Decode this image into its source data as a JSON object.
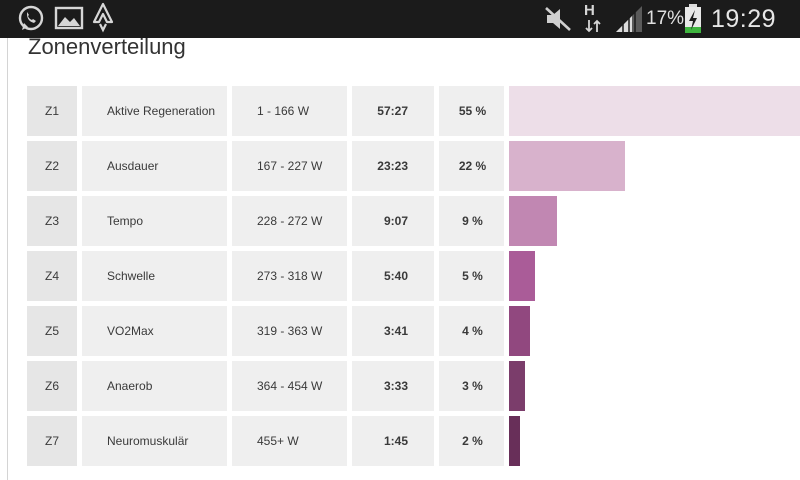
{
  "status_bar": {
    "icons_left": [
      "whatsapp-icon",
      "gallery-icon",
      "strava-icon"
    ],
    "icons_right": [
      "mute-icon",
      "hspa-data-icon",
      "signal-icon",
      "battery-charging-icon"
    ],
    "network_label": "H",
    "battery_percent": "17%",
    "time": "19:29"
  },
  "page": {
    "title": "Zonenverteilung"
  },
  "zones": [
    {
      "zone": "Z1",
      "name": "Aktive Regeneration",
      "range": "1 - 166 W",
      "time": "57:27",
      "percent_label": "55 %",
      "percent": 55,
      "color": "#eddee8"
    },
    {
      "zone": "Z2",
      "name": "Ausdauer",
      "range": "167 - 227 W",
      "time": "23:23",
      "percent_label": "22 %",
      "percent": 22,
      "color": "#d8b2cc"
    },
    {
      "zone": "Z3",
      "name": "Tempo",
      "range": "228 - 272 W",
      "time": "9:07",
      "percent_label": "9 %",
      "percent": 9,
      "color": "#c187b2"
    },
    {
      "zone": "Z4",
      "name": "Schwelle",
      "range": "273 - 318 W",
      "time": "5:40",
      "percent_label": "5 %",
      "percent": 5,
      "color": "#aa5c98"
    },
    {
      "zone": "Z5",
      "name": "VO2Max",
      "range": "319 - 363 W",
      "time": "3:41",
      "percent_label": "4 %",
      "percent": 4,
      "color": "#91487f"
    },
    {
      "zone": "Z6",
      "name": "Anaerob",
      "range": "364 - 454 W",
      "time": "3:33",
      "percent_label": "3 %",
      "percent": 3,
      "color": "#7b3d6b"
    },
    {
      "zone": "Z7",
      "name": "Neuromuskulär",
      "range": "455+ W",
      "time": "1:45",
      "percent_label": "2 %",
      "percent": 2,
      "color": "#682f59"
    }
  ]
}
